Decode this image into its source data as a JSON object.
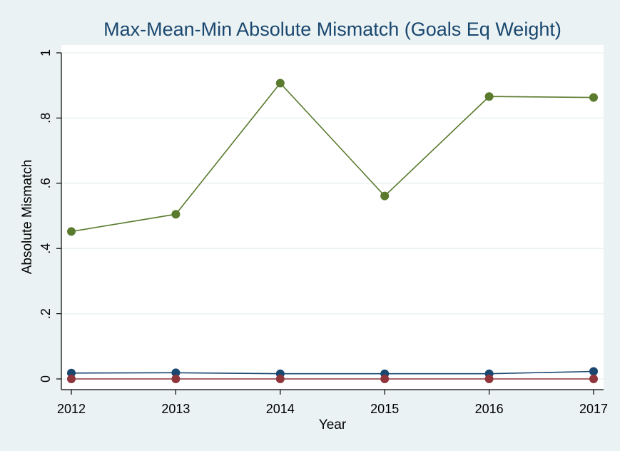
{
  "chart_data": {
    "type": "line",
    "title": "Max-Mean-Min Absolute Mismatch (Goals Eq Weight)",
    "xlabel": "Year",
    "ylabel": "Absolute Mismatch",
    "x": [
      2012,
      2013,
      2014,
      2015,
      2016,
      2017
    ],
    "x_tick_labels": [
      "2012",
      "2013",
      "2014",
      "2015",
      "2016",
      "2017"
    ],
    "ylim": [
      0,
      1
    ],
    "y_ticks": [
      0,
      0.2,
      0.4,
      0.6,
      0.8,
      1
    ],
    "y_tick_labels": [
      "0",
      ".2",
      ".4",
      ".6",
      ".8",
      "1"
    ],
    "grid": true,
    "series": [
      {
        "values": [
          0.452,
          0.505,
          0.907,
          0.561,
          0.866,
          0.863
        ],
        "color": "#5a7a2e"
      },
      {
        "values": [
          0.018,
          0.019,
          0.016,
          0.016,
          0.016,
          0.023
        ],
        "color": "#1a476f"
      },
      {
        "values": [
          0.0,
          0.0,
          0.0,
          0.0,
          0.0,
          0.0
        ],
        "color": "#90353b"
      }
    ]
  }
}
